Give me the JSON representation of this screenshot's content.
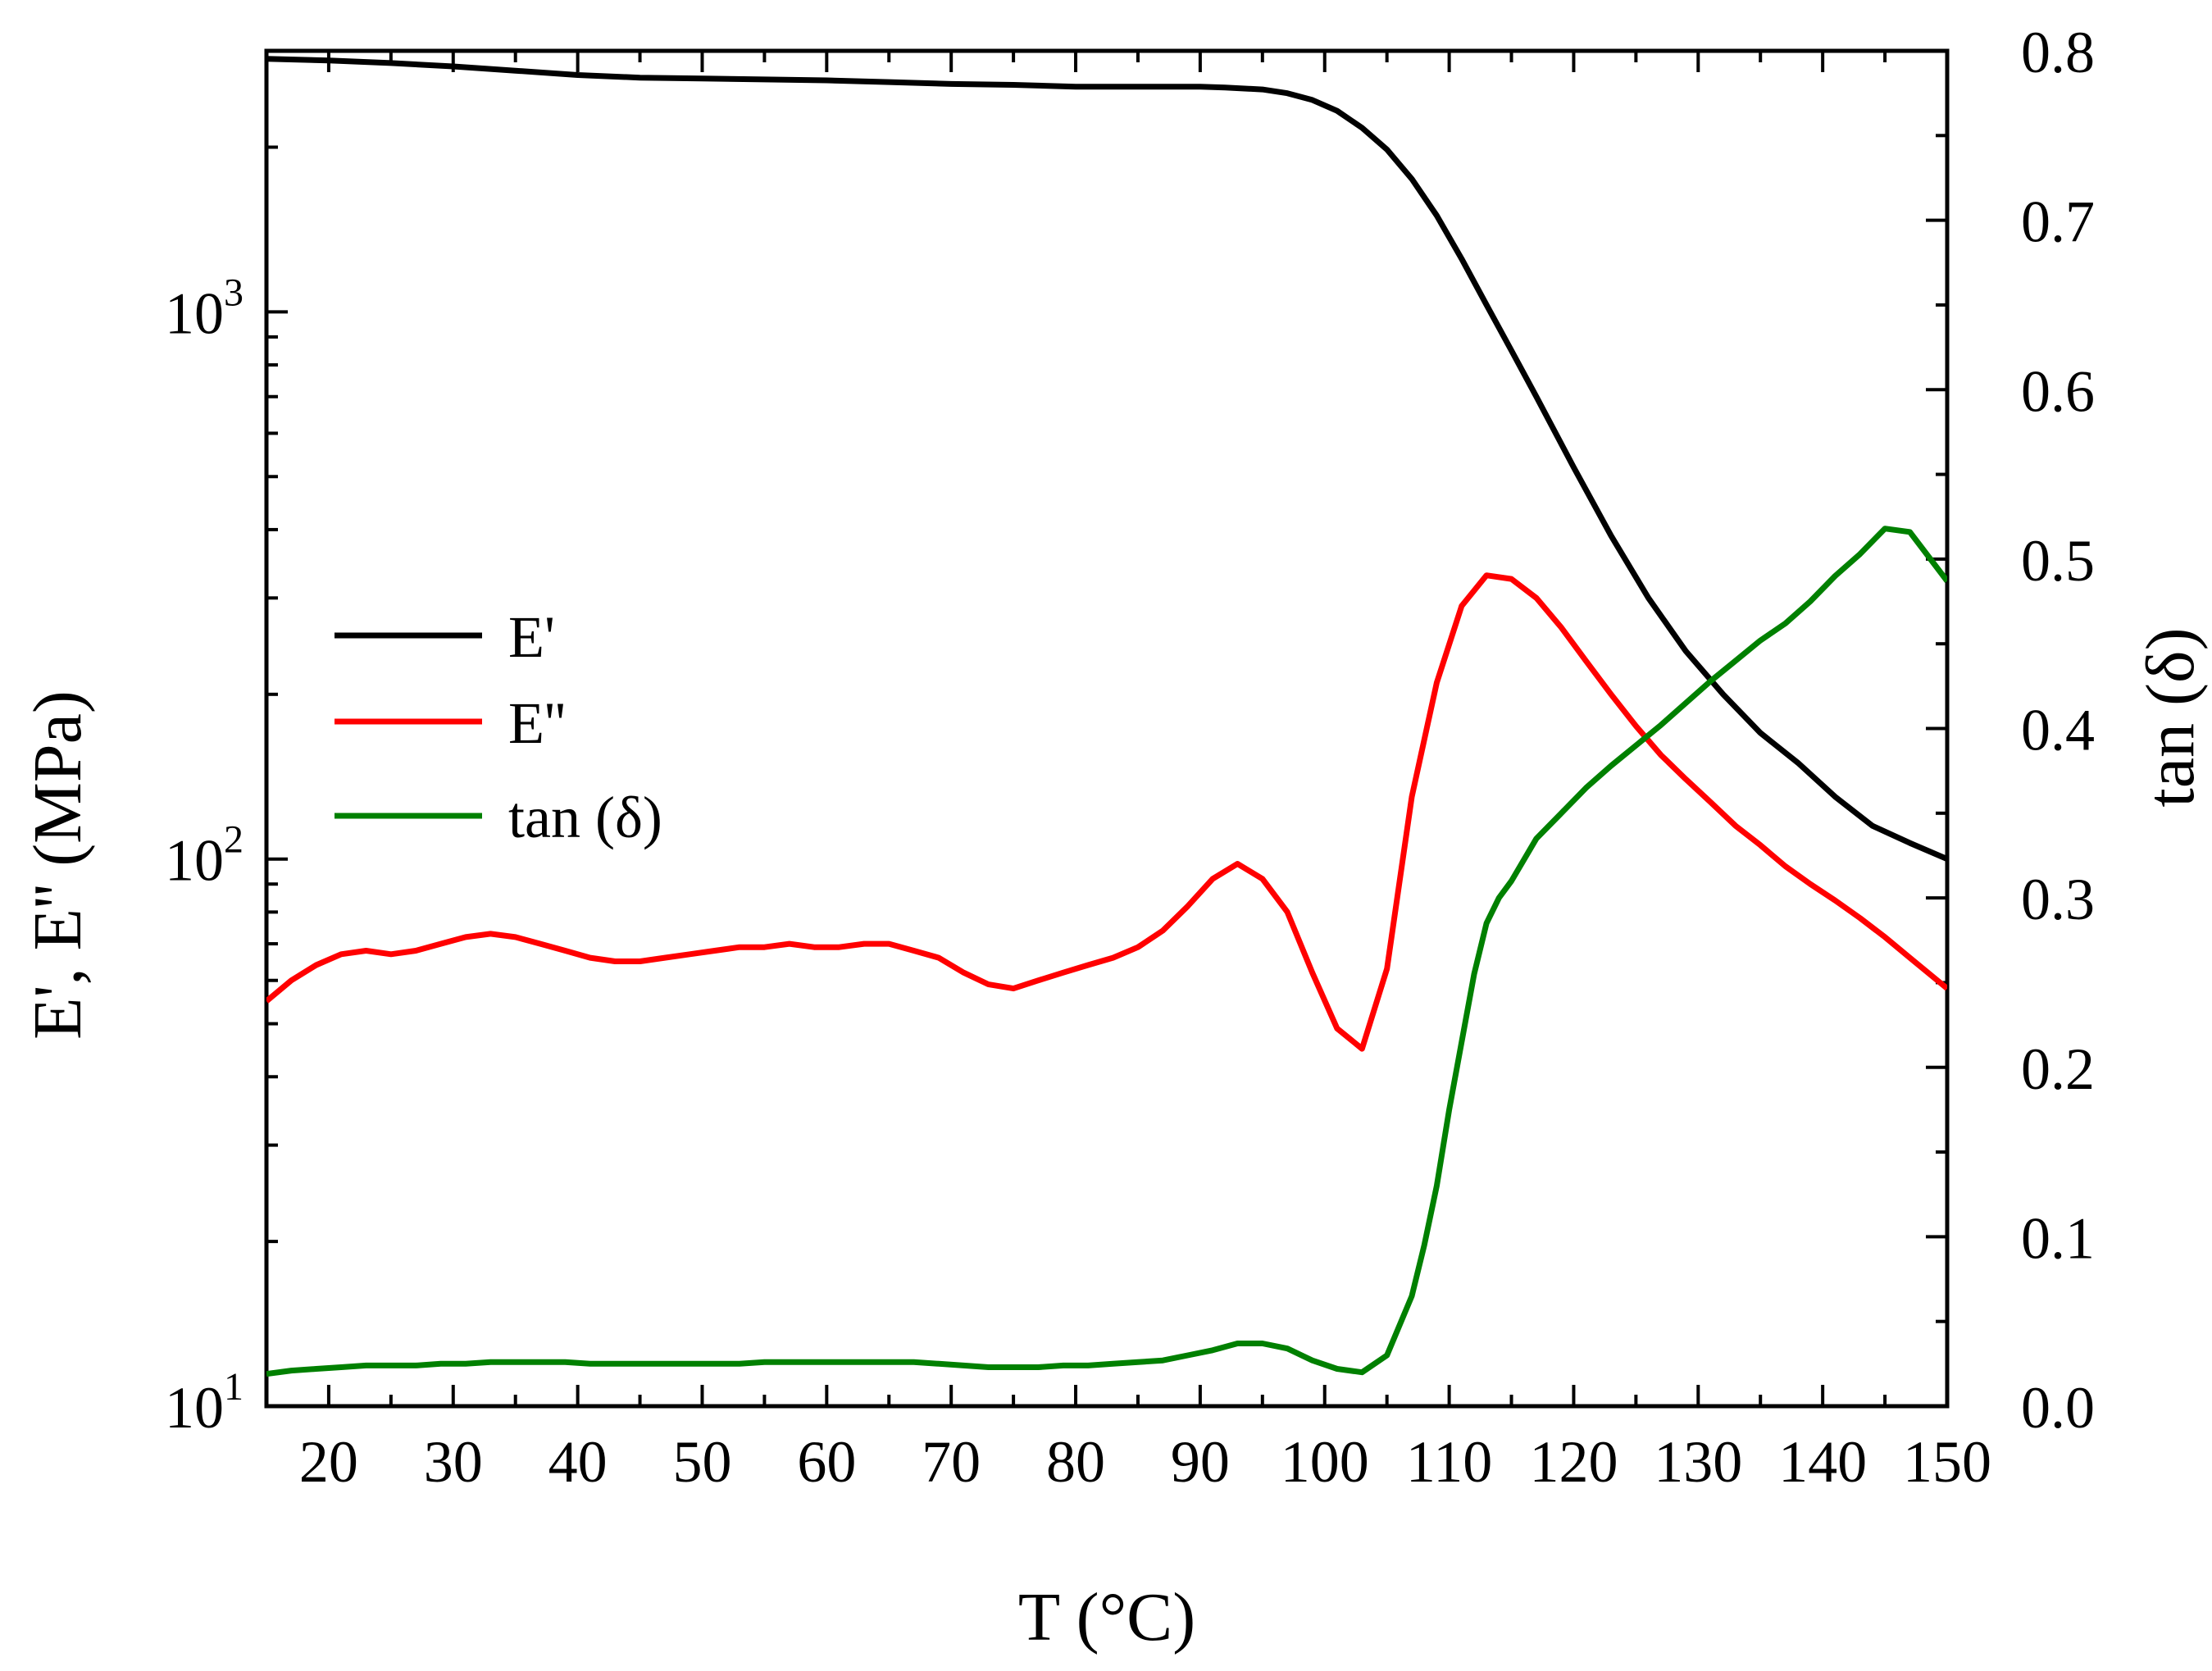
{
  "chart_data": {
    "type": "line",
    "title": "",
    "xlabel": "T (°C)",
    "ylabel_left": "E', E'' (MPa)",
    "ylabel_right": "tan (δ)",
    "xlim": [
      15,
      150
    ],
    "ylim_left": [
      10,
      3000
    ],
    "yscale_left": "log",
    "ylim_right": [
      0.0,
      0.8
    ],
    "yscale_right": "linear",
    "x_ticks": [
      20,
      30,
      40,
      50,
      60,
      70,
      80,
      90,
      100,
      110,
      120,
      130,
      140,
      150
    ],
    "x_tick_labels": [
      "20",
      "30",
      "40",
      "50",
      "60",
      "70",
      "80",
      "90",
      "100",
      "110",
      "120",
      "130",
      "140",
      "150"
    ],
    "y_left_major_ticks": [
      {
        "value": 10,
        "base": "10",
        "exp": "1"
      },
      {
        "value": 100,
        "base": "10",
        "exp": "2"
      },
      {
        "value": 1000,
        "base": "10",
        "exp": "3"
      }
    ],
    "y_right_ticks": [
      0.0,
      0.1,
      0.2,
      0.3,
      0.4,
      0.5,
      0.6,
      0.7,
      0.8
    ],
    "y_right_tick_labels": [
      "0.0",
      "0.1",
      "0.2",
      "0.3",
      "0.4",
      "0.5",
      "0.6",
      "0.7",
      "0.8"
    ],
    "legend_position": "center-left",
    "grid": false,
    "series": [
      {
        "name": "E'",
        "axis": "left",
        "color": "#000000",
        "x": [
          15,
          20,
          25,
          30,
          35,
          40,
          45,
          50,
          55,
          60,
          65,
          70,
          75,
          80,
          85,
          90,
          92,
          95,
          97,
          99,
          101,
          103,
          105,
          107,
          109,
          111,
          113,
          115,
          117,
          120,
          123,
          126,
          129,
          132,
          135,
          138,
          141,
          144,
          147,
          150
        ],
        "y": [
          2900,
          2880,
          2850,
          2810,
          2760,
          2710,
          2680,
          2670,
          2660,
          2650,
          2630,
          2610,
          2600,
          2580,
          2580,
          2580,
          2570,
          2550,
          2510,
          2440,
          2330,
          2170,
          1980,
          1750,
          1500,
          1250,
          1030,
          850,
          700,
          520,
          390,
          300,
          240,
          200,
          170,
          150,
          130,
          115,
          107,
          100
        ]
      },
      {
        "name": "E''",
        "axis": "left",
        "color": "#ff0000",
        "x": [
          15,
          17,
          19,
          21,
          23,
          25,
          27,
          29,
          31,
          33,
          35,
          37,
          39,
          41,
          43,
          45,
          47,
          49,
          51,
          53,
          55,
          57,
          59,
          61,
          63,
          65,
          67,
          69,
          71,
          73,
          75,
          77,
          79,
          81,
          83,
          85,
          87,
          89,
          91,
          93,
          95,
          97,
          99,
          101,
          103,
          105,
          107,
          109,
          111,
          113,
          115,
          117,
          119,
          121,
          123,
          125,
          127,
          129,
          131,
          133,
          135,
          137,
          139,
          141,
          143,
          145,
          147,
          150
        ],
        "y": [
          55,
          60,
          64,
          67,
          68,
          67,
          68,
          70,
          72,
          73,
          72,
          70,
          68,
          66,
          65,
          65,
          66,
          67,
          68,
          69,
          69,
          70,
          69,
          69,
          70,
          70,
          68,
          66,
          62,
          59,
          58,
          60,
          62,
          64,
          66,
          69,
          74,
          82,
          92,
          98,
          92,
          80,
          62,
          49,
          45,
          63,
          130,
          210,
          290,
          330,
          325,
          300,
          265,
          230,
          200,
          175,
          155,
          140,
          127,
          115,
          106,
          97,
          90,
          84,
          78,
          72,
          66,
          58
        ]
      },
      {
        "name": "tan (δ)",
        "axis": "right",
        "color": "#008000",
        "x": [
          15,
          17,
          19,
          21,
          23,
          25,
          27,
          29,
          31,
          33,
          35,
          37,
          39,
          41,
          43,
          45,
          47,
          49,
          51,
          53,
          55,
          57,
          59,
          61,
          63,
          65,
          67,
          69,
          71,
          73,
          75,
          77,
          79,
          81,
          83,
          85,
          87,
          89,
          91,
          93,
          95,
          97,
          99,
          101,
          103,
          105,
          107,
          108,
          109,
          110,
          111,
          112,
          113,
          114,
          115,
          117,
          119,
          121,
          123,
          125,
          127,
          129,
          131,
          133,
          135,
          137,
          139,
          141,
          143,
          145,
          147,
          150
        ],
        "y": [
          0.019,
          0.021,
          0.022,
          0.023,
          0.024,
          0.024,
          0.024,
          0.025,
          0.025,
          0.026,
          0.026,
          0.026,
          0.026,
          0.025,
          0.025,
          0.025,
          0.025,
          0.025,
          0.025,
          0.025,
          0.026,
          0.026,
          0.026,
          0.026,
          0.026,
          0.026,
          0.026,
          0.025,
          0.024,
          0.023,
          0.023,
          0.023,
          0.024,
          0.024,
          0.025,
          0.026,
          0.027,
          0.03,
          0.033,
          0.037,
          0.037,
          0.034,
          0.027,
          0.022,
          0.02,
          0.03,
          0.065,
          0.095,
          0.13,
          0.175,
          0.215,
          0.255,
          0.285,
          0.3,
          0.31,
          0.335,
          0.35,
          0.365,
          0.378,
          0.39,
          0.402,
          0.415,
          0.428,
          0.44,
          0.452,
          0.462,
          0.475,
          0.49,
          0.503,
          0.518,
          0.516,
          0.487
        ]
      }
    ]
  }
}
